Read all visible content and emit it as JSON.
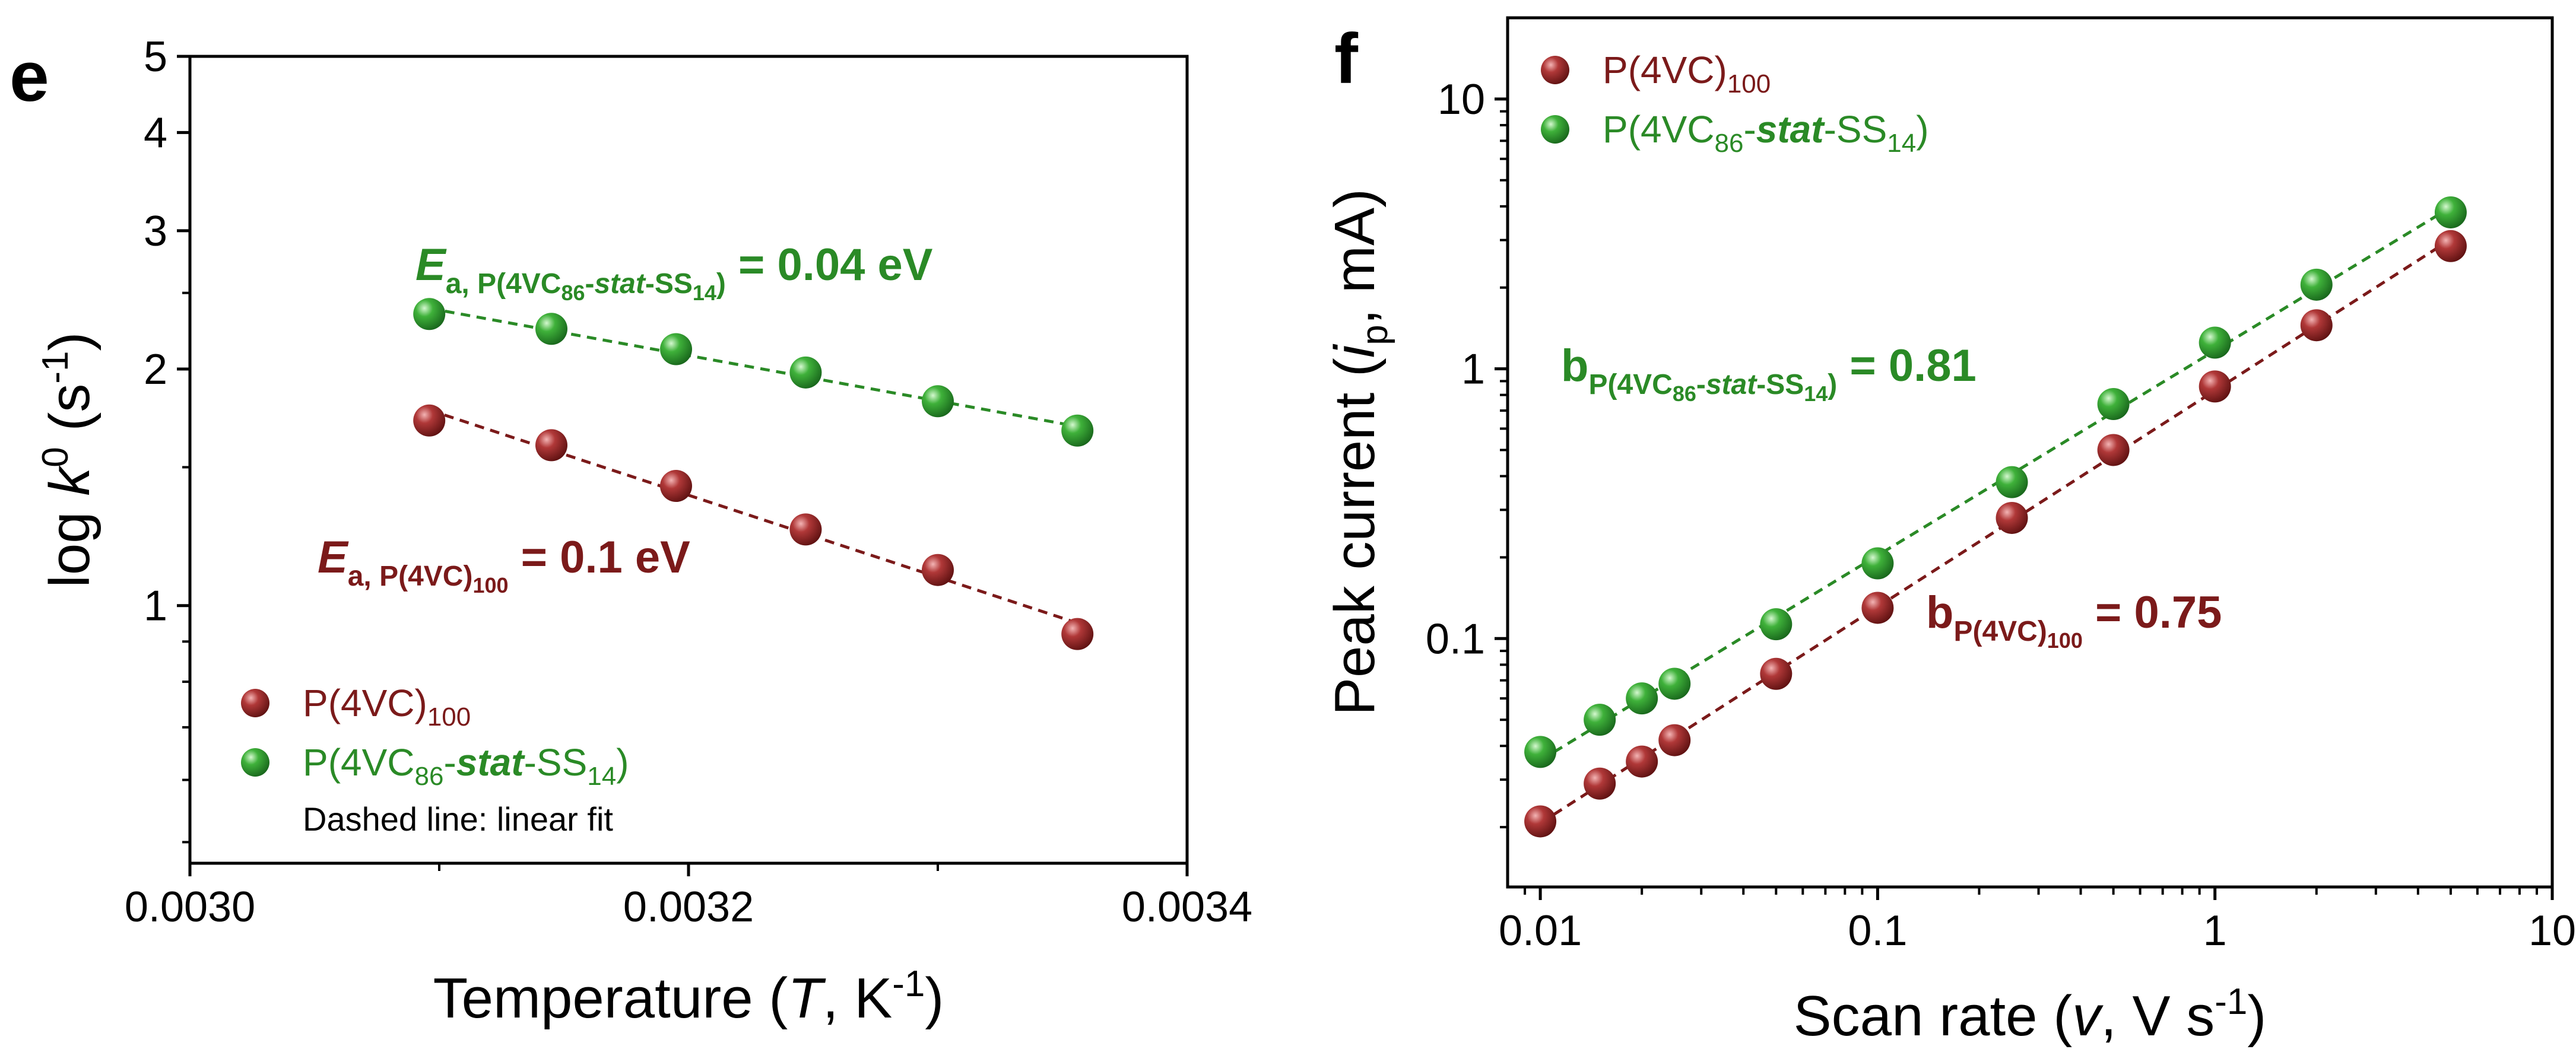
{
  "colors": {
    "series_red": "#7b1a1a",
    "series_green": "#2a8a26",
    "red_light": "#d86a6a",
    "green_light": "#8fe28a"
  },
  "panel_e": {
    "letter": "e",
    "ylabel": {
      "main": "log ",
      "var": "k",
      "sup": "0",
      "open": " (s",
      "exp": "-1",
      "close": ")"
    },
    "xlabel": {
      "main": "Temperature (",
      "var": "T",
      "mid": ", K",
      "exp": "-1",
      "close": ")"
    },
    "annotation_green": {
      "E": "E",
      "sub": "a, P(4VC",
      "sub2": "86",
      "sub3": "-",
      "stat": "stat",
      "sub4": "-SS",
      "sub5": "14",
      "sub6": ")",
      "value": " = 0.04 eV"
    },
    "annotation_red": {
      "E": "E",
      "sub": "a, P(4VC)",
      "sub2": "100",
      "value": " = 0.1 eV"
    },
    "legend": {
      "red": {
        "base": "P(4VC)",
        "sub": "100"
      },
      "green": {
        "base": "P(4VC",
        "sub1": "86",
        "dash": "-",
        "stat": "stat",
        "mid": "-SS",
        "sub2": "14",
        "close": ")"
      },
      "note": "Dashed line: linear fit"
    }
  },
  "panel_f": {
    "letter": "f",
    "ylabel": {
      "main": "Peak current (",
      "var": "i",
      "sub": "p",
      "close": ", mA)"
    },
    "xlabel": {
      "main": "Scan rate (",
      "var": "v",
      "close": ", V s",
      "exp": "-1",
      "end": ")"
    },
    "annotation_green": {
      "b": "b",
      "sub": "P(4VC",
      "sub2": "86",
      "sub3": "-",
      "stat": "stat",
      "sub4": "-SS",
      "sub5": "14",
      "sub6": ")",
      "value": " = 0.81"
    },
    "annotation_red": {
      "b": "b",
      "sub": "P(4VC)",
      "sub2": "100",
      "value": " = 0.75"
    },
    "legend": {
      "red": {
        "base": "P(4VC)",
        "sub": "100"
      },
      "green": {
        "base": "P(4VC",
        "sub1": "86",
        "dash": "-",
        "stat": "stat",
        "mid": "-SS",
        "sub2": "14",
        "close": ")"
      }
    }
  },
  "chart_data": [
    {
      "type": "scatter",
      "title": "",
      "xlabel": "Temperature (T, K-1)",
      "ylabel": "log k0 (s-1)",
      "xscale": "linear",
      "yscale": "log",
      "xlim": [
        0.003,
        0.0034
      ],
      "ylim": [
        0.47,
        5
      ],
      "xticks": [
        0.003,
        0.0032,
        0.0034
      ],
      "xtick_labels": [
        "0.0030",
        "0.0032",
        "0.0034"
      ],
      "yticks": [
        1,
        2,
        3,
        4,
        5
      ],
      "ytick_labels": [
        "1",
        "2",
        "3",
        "4",
        "5"
      ],
      "series": [
        {
          "name": "P(4VC)100",
          "color": "#7b1a1a",
          "x": [
            0.003096,
            0.003145,
            0.003195,
            0.003247,
            0.0033,
            0.003356
          ],
          "y": [
            1.72,
            1.6,
            1.42,
            1.25,
            1.11,
            0.92
          ]
        },
        {
          "name": "P(4VC86-stat-SS14)",
          "color": "#2a8a26",
          "x": [
            0.003096,
            0.003145,
            0.003195,
            0.003247,
            0.0033,
            0.003356
          ],
          "y": [
            2.35,
            2.25,
            2.12,
            1.98,
            1.82,
            1.67
          ]
        }
      ],
      "fit": "linear (dashed)",
      "legend": "bottom-left"
    },
    {
      "type": "scatter",
      "title": "",
      "xlabel": "Scan rate (v, V s-1)",
      "ylabel": "Peak current (ip, mA)",
      "xscale": "log",
      "yscale": "log",
      "xlim": [
        0.008,
        10
      ],
      "ylim": [
        0.012,
        20
      ],
      "xticks": [
        0.01,
        0.1,
        1,
        10
      ],
      "xtick_labels": [
        "0.01",
        "0.1",
        "1",
        "10"
      ],
      "yticks": [
        0.1,
        1,
        10
      ],
      "ytick_labels": [
        "0.1",
        "1",
        "10"
      ],
      "series": [
        {
          "name": "P(4VC)100",
          "color": "#7b1a1a",
          "x": [
            0.01,
            0.015,
            0.02,
            0.025,
            0.05,
            0.1,
            0.25,
            0.5,
            1,
            2,
            5
          ],
          "y": [
            0.021,
            0.029,
            0.035,
            0.042,
            0.074,
            0.13,
            0.28,
            0.5,
            0.86,
            1.45,
            2.85
          ]
        },
        {
          "name": "P(4VC86-stat-SS14)",
          "color": "#2a8a26",
          "x": [
            0.01,
            0.015,
            0.02,
            0.025,
            0.05,
            0.1,
            0.25,
            0.5,
            1,
            2,
            5
          ],
          "y": [
            0.038,
            0.05,
            0.06,
            0.068,
            0.113,
            0.19,
            0.38,
            0.74,
            1.25,
            2.05,
            3.8
          ]
        }
      ],
      "fit": "linear in log-log (dashed)",
      "legend": "top-left"
    }
  ]
}
